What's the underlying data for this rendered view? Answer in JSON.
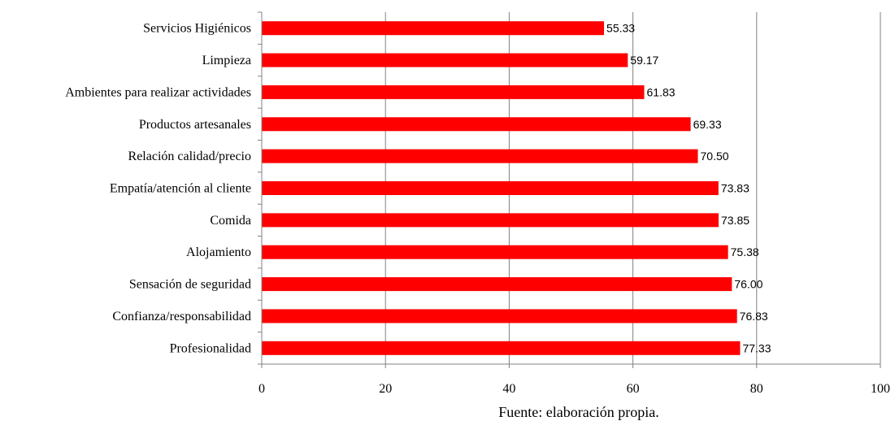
{
  "chart_data": {
    "type": "bar",
    "orientation": "horizontal",
    "categories": [
      "Servicios Higiénicos",
      "Limpieza",
      "Ambientes para realizar actividades",
      "Productos artesanales",
      "Relación calidad/precio",
      "Empatía/atención al cliente",
      "Comida",
      "Alojamiento",
      "Sensación de seguridad",
      "Confianza/responsabilidad",
      "Profesionalidad"
    ],
    "values": [
      55.33,
      59.17,
      61.83,
      69.33,
      70.5,
      73.83,
      73.85,
      75.38,
      76.0,
      76.83,
      77.33
    ],
    "value_labels": [
      "55.33",
      "59.17",
      "61.83",
      "69.33",
      "70.50",
      "73.83",
      "73.85",
      "75.38",
      "76.00",
      "76.83",
      "77.33"
    ],
    "xlim": [
      0,
      100
    ],
    "x_ticks": [
      0,
      20,
      40,
      60,
      80,
      100
    ],
    "x_tick_labels": [
      "0",
      "20",
      "40",
      "60",
      "80",
      "100"
    ],
    "grid": true,
    "bar_color": "#ff0000",
    "legend": "none"
  },
  "source_note": "Fuente: elaboración propia."
}
